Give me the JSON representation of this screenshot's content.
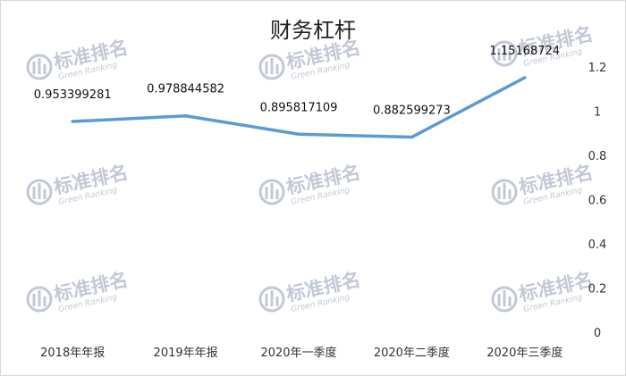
{
  "chart_data": {
    "type": "line",
    "title": "财务杠杆",
    "categories": [
      "2018年年报",
      "2019年年报",
      "2020年一季度",
      "2020年二季度",
      "2020年三季度"
    ],
    "series": [
      {
        "values": [
          0.953399281,
          0.978844582,
          0.895817109,
          0.882599273,
          1.15168724
        ],
        "data_labels": [
          "0.953399281",
          "0.978844582",
          "0.895817109",
          "0.882599273",
          "1.15168724"
        ],
        "color": "#5b9bd5"
      }
    ],
    "ylim": [
      0,
      1.2
    ],
    "yticks": [
      "0",
      "0.2",
      "0.4",
      "0.6",
      "0.8",
      "1",
      "1.2"
    ],
    "y_axis_side": "right",
    "grid": false,
    "legend": "none"
  },
  "watermark": {
    "text": "标准排名",
    "subtext": "Green Ranking",
    "color": "#c3c8d6"
  }
}
